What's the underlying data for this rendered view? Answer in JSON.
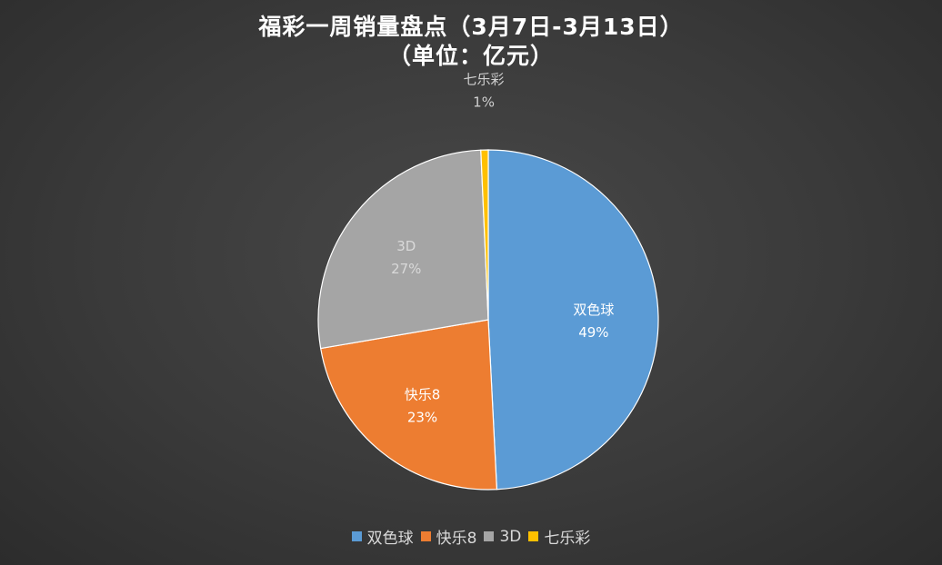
{
  "chart_data": {
    "type": "pie",
    "title_line1": "福彩一周销量盘点（3月7日-3月13日）",
    "title_line2": "（单位：亿元）",
    "start_angle_deg": 0,
    "direction": "clockwise",
    "legend_position": "bottom",
    "slices": [
      {
        "label": "双色球",
        "percent_label": "49%",
        "value": 49.2,
        "color": "#5b9bd5"
      },
      {
        "label": "快乐8",
        "percent_label": "23%",
        "value": 23.1,
        "color": "#ed7d31"
      },
      {
        "label": "3D",
        "percent_label": "27%",
        "value": 27.0,
        "color": "#a5a5a5"
      },
      {
        "label": "七乐彩",
        "percent_label": "1%",
        "value": 0.7,
        "color": "#ffc000"
      }
    ]
  }
}
